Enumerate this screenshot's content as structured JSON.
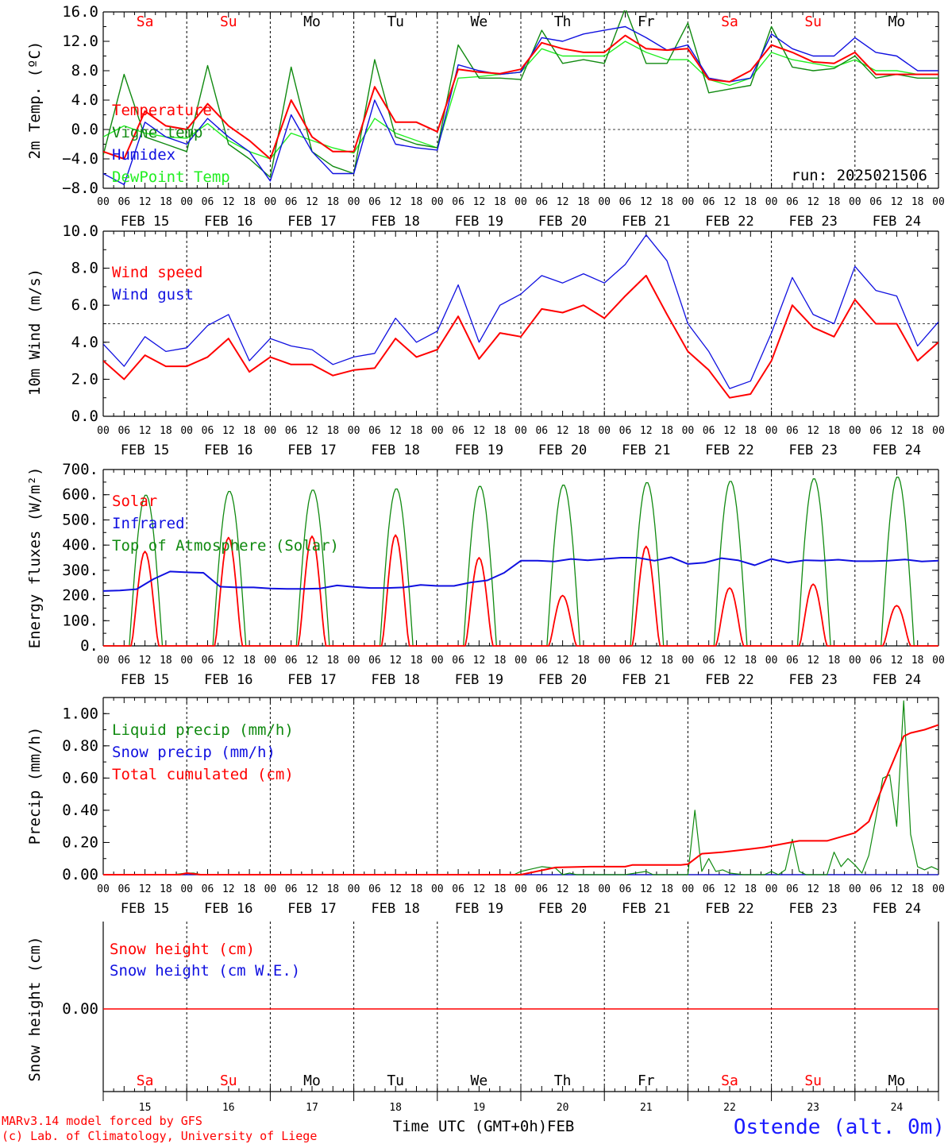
{
  "footer": {
    "credit_line1": "MARv3.14 model forced by GFS",
    "credit_line2": "(c) Lab. of Climatology, University of Liege",
    "xlabel": "Time UTC (GMT+0h)",
    "month_label": "FEB",
    "station": "Ostende (alt. 0m)"
  },
  "colors": {
    "red": "#ff0000",
    "blue": "#1010e0",
    "green": "#108a10",
    "lightgreen": "#22ee22",
    "axis": "#000000"
  },
  "chart_data": [
    {
      "type": "line",
      "ylabel": "2m Temp. (ºC)",
      "ylim": [
        -8,
        16
      ],
      "yticks": [
        "16.0",
        "12.0",
        "8.0",
        "4.0",
        "0.0",
        "−4.0",
        "−8.0"
      ],
      "run_label": "run: 2025021506",
      "day_labels": [
        {
          "label": "Sa",
          "color": "#ff0000"
        },
        {
          "label": "Su",
          "color": "#ff0000"
        },
        {
          "label": "Mo",
          "color": "#000000"
        },
        {
          "label": "Tu",
          "color": "#000000"
        },
        {
          "label": "We",
          "color": "#000000"
        },
        {
          "label": "Th",
          "color": "#000000"
        },
        {
          "label": "Fr",
          "color": "#000000"
        },
        {
          "label": "Sa",
          "color": "#ff0000"
        },
        {
          "label": "Su",
          "color": "#ff0000"
        },
        {
          "label": "Mo",
          "color": "#000000"
        }
      ],
      "x_hours": [
        0,
        6,
        12,
        18,
        24,
        30,
        36,
        42,
        48,
        54,
        60,
        66,
        72,
        78,
        84,
        90,
        96,
        102,
        108,
        114,
        120,
        126,
        132,
        138,
        144,
        150,
        156,
        162,
        168,
        174,
        180,
        186,
        192,
        198,
        204,
        210,
        216,
        222,
        228,
        234,
        240
      ],
      "series": [
        {
          "name": "Temperature",
          "color": "#ff0000",
          "values": [
            -3,
            -4,
            2.5,
            0.5,
            0,
            3.5,
            0.5,
            -1.5,
            -4,
            4,
            -1,
            -3,
            -3,
            5.8,
            1,
            1,
            -0.3,
            8.2,
            7.8,
            7.6,
            8.2,
            11.8,
            11,
            10.5,
            10.5,
            12.8,
            11,
            10.8,
            11,
            6.8,
            6.5,
            8,
            11.5,
            10.5,
            9.2,
            9,
            10.5,
            7.5,
            7.5,
            7.5,
            7.5
          ]
        },
        {
          "name": "Vigne temp",
          "color": "#108a10",
          "values": [
            -3.5,
            7.5,
            -1,
            -2,
            -3,
            8.7,
            -2,
            -4,
            -6.5,
            8.5,
            -3,
            -5,
            -6,
            9.5,
            -1,
            -2,
            -2.5,
            11.5,
            7,
            7,
            6.8,
            13.5,
            9,
            9.5,
            9,
            16.5,
            9,
            9,
            14.5,
            5,
            5.5,
            6,
            14,
            8.5,
            8,
            8.3,
            10,
            7,
            7.5,
            7,
            7
          ]
        },
        {
          "name": "Humidex",
          "color": "#1010e0",
          "values": [
            -6,
            -7.5,
            1,
            -1,
            -2,
            1.5,
            -1,
            -3,
            -7,
            2,
            -3,
            -6,
            -6,
            4,
            -2,
            -2.5,
            -2.8,
            8.8,
            8,
            7.5,
            7.8,
            12.5,
            12,
            13,
            13.5,
            14,
            12.5,
            10.8,
            11.5,
            7,
            6.5,
            7,
            13,
            11,
            10,
            10,
            12.5,
            10.5,
            10,
            8,
            8
          ]
        },
        {
          "name": "DewPoint Temp",
          "color": "#22ee22",
          "values": [
            -1,
            0.5,
            -0.5,
            -1,
            -1.2,
            0.8,
            -1.5,
            -3,
            -4,
            -0.5,
            -1.5,
            -2.5,
            -3.2,
            1.5,
            -0.5,
            -1.5,
            -2.5,
            7,
            7.2,
            7.5,
            7.8,
            11,
            10,
            10,
            10,
            12,
            10.5,
            9.5,
            9.5,
            6.8,
            6,
            7,
            10.5,
            9.5,
            9,
            8.5,
            9.5,
            8,
            8,
            7.5,
            7.5
          ]
        }
      ],
      "legend": [
        {
          "label": "Temperature",
          "color": "#ff0000"
        },
        {
          "label": "Vigne temp",
          "color": "#108a10"
        },
        {
          "label": "Humidex",
          "color": "#1010e0"
        },
        {
          "label": "DewPoint Temp",
          "color": "#22ee22"
        }
      ]
    },
    {
      "type": "line",
      "ylabel": "10m Wind (m/s)",
      "ylim": [
        0,
        10
      ],
      "yticks": [
        "10.0",
        "8.0",
        "6.0",
        "4.0",
        "2.0",
        "0.0"
      ],
      "x_hours": [
        0,
        6,
        12,
        18,
        24,
        30,
        36,
        42,
        48,
        54,
        60,
        66,
        72,
        78,
        84,
        90,
        96,
        102,
        108,
        114,
        120,
        126,
        132,
        138,
        144,
        150,
        156,
        162,
        168,
        174,
        180,
        186,
        192,
        198,
        204,
        210,
        216,
        222,
        228,
        234,
        240
      ],
      "series": [
        {
          "name": "Wind speed",
          "color": "#ff0000",
          "values": [
            3,
            2,
            3.3,
            2.7,
            2.7,
            3.2,
            4.2,
            2.4,
            3.2,
            2.8,
            2.8,
            2.2,
            2.5,
            2.6,
            4.2,
            3.2,
            3.6,
            5.4,
            3.1,
            4.5,
            4.3,
            5.8,
            5.6,
            6.0,
            5.3,
            6.5,
            7.6,
            5.5,
            3.5,
            2.5,
            1,
            1.2,
            3,
            6,
            4.8,
            4.3,
            6.3,
            5,
            5,
            3,
            4
          ]
        },
        {
          "name": "Wind gust",
          "color": "#1010e0",
          "values": [
            3.9,
            2.7,
            4.3,
            3.5,
            3.7,
            4.9,
            5.5,
            3,
            4.2,
            3.8,
            3.6,
            2.8,
            3.2,
            3.4,
            5.3,
            4.0,
            4.6,
            7.1,
            4.0,
            6.0,
            6.6,
            7.6,
            7.2,
            7.7,
            7.2,
            8.2,
            9.8,
            8.4,
            5.0,
            3.5,
            1.5,
            1.9,
            4.5,
            7.5,
            5.5,
            5.0,
            8.1,
            6.8,
            6.5,
            3.8,
            5.1
          ]
        }
      ],
      "legend": [
        {
          "label": "Wind speed",
          "color": "#ff0000"
        },
        {
          "label": "Wind gust",
          "color": "#1010e0"
        }
      ]
    },
    {
      "type": "line",
      "ylabel": "Energy fluxes (W/m²)",
      "ylim": [
        0,
        700
      ],
      "yticks": [
        "700.",
        "600.",
        "500.",
        "400.",
        "300.",
        "200.",
        "100.",
        "0."
      ],
      "solar_peaks": [
        375,
        430,
        435,
        440,
        350,
        200,
        395,
        230,
        245,
        160
      ],
      "toa_peaks": [
        600,
        615,
        620,
        625,
        635,
        640,
        650,
        655,
        665,
        672
      ],
      "infrared_values": [
        218,
        220,
        225,
        265,
        295,
        292,
        290,
        235,
        232,
        232,
        228,
        226,
        226,
        228,
        240,
        234,
        230,
        230,
        232,
        242,
        238,
        238,
        252,
        260,
        290,
        338,
        338,
        335,
        345,
        340,
        345,
        350,
        350,
        338,
        352,
        325,
        330,
        348,
        340,
        320,
        345,
        330,
        340,
        338,
        342,
        336,
        336,
        338,
        343,
        335,
        338
      ],
      "series": [
        {
          "name": "Solar",
          "color": "#ff0000"
        },
        {
          "name": "Infrared",
          "color": "#1010e0"
        },
        {
          "name": "Top of Atmosphere (Solar)",
          "color": "#108a10"
        }
      ],
      "legend": [
        {
          "label": "Solar",
          "color": "#ff0000"
        },
        {
          "label": "Infrared",
          "color": "#1010e0"
        },
        {
          "label": "Top of Atmosphere (Solar)",
          "color": "#108a10"
        }
      ]
    },
    {
      "type": "line",
      "ylabel": "Precip (mm/h)",
      "ylim": [
        0,
        1.1
      ],
      "yticks": [
        "1.00",
        "0.80",
        "0.60",
        "0.40",
        "0.20",
        "0.00"
      ],
      "series": [
        {
          "name": "Liquid precip (mm/h)",
          "color": "#108a10",
          "x_hours": [
            0,
            20,
            24,
            26,
            28,
            40,
            60,
            80,
            100,
            118,
            120,
            124,
            126,
            130,
            132,
            134,
            136,
            150,
            156,
            158,
            168,
            170,
            172,
            174,
            176,
            178,
            180,
            184,
            186,
            190,
            192,
            194,
            196,
            198,
            200,
            202,
            204,
            206,
            208,
            210,
            212,
            214,
            216,
            218,
            220,
            222,
            224,
            226,
            228,
            230,
            232,
            234,
            236,
            238,
            240
          ],
          "values": [
            0,
            0,
            0.01,
            0.01,
            0,
            0,
            0,
            0,
            0,
            0,
            0.02,
            0.04,
            0.05,
            0.04,
            0,
            0.01,
            0,
            0,
            0.02,
            0,
            0,
            0.4,
            0.02,
            0.1,
            0.02,
            0.03,
            0.01,
            0,
            0,
            0,
            0.02,
            0,
            0.03,
            0.22,
            0.02,
            0,
            0,
            0,
            0,
            0.14,
            0.05,
            0.1,
            0.06,
            0.01,
            0.12,
            0.35,
            0.6,
            0.62,
            0.3,
            1.08,
            0.25,
            0.05,
            0.03,
            0.05,
            0.03
          ]
        },
        {
          "name": "Snow precip (mm/h)",
          "color": "#1010e0",
          "x_hours": [
            0,
            240
          ],
          "values": [
            0,
            0
          ]
        },
        {
          "name": "Total cumulated (cm)",
          "color": "#ff0000",
          "x_hours": [
            0,
            22,
            24,
            28,
            40,
            60,
            80,
            100,
            120,
            130,
            140,
            150,
            152,
            156,
            160,
            166,
            168,
            172,
            178,
            186,
            190,
            200,
            204,
            208,
            216,
            220,
            224,
            230,
            232,
            236,
            240
          ],
          "values": [
            0,
            0,
            0.01,
            0,
            0,
            0,
            0,
            0,
            0,
            0.045,
            0.05,
            0.05,
            0.06,
            0.06,
            0.06,
            0.06,
            0.065,
            0.13,
            0.14,
            0.16,
            0.17,
            0.21,
            0.21,
            0.21,
            0.26,
            0.33,
            0.55,
            0.86,
            0.88,
            0.9,
            0.93
          ]
        }
      ],
      "legend": [
        {
          "label": "Liquid precip (mm/h)",
          "color": "#108a10"
        },
        {
          "label": "Snow precip (mm/h)",
          "color": "#1010e0"
        },
        {
          "label": "Total cumulated (cm)",
          "color": "#ff0000"
        }
      ]
    },
    {
      "type": "line",
      "ylabel": "Snow height (cm)",
      "yticks": [
        "0.00"
      ],
      "series": [
        {
          "name": "Snow height (cm)",
          "color": "#ff0000",
          "x_hours": [
            0,
            240
          ],
          "values": [
            0,
            0
          ]
        },
        {
          "name": "Snow height (cm W.E.)",
          "color": "#1010e0",
          "x_hours": [
            0,
            240
          ],
          "values": [
            0,
            0
          ]
        }
      ],
      "legend": [
        {
          "label": "Snow height (cm)",
          "color": "#ff0000"
        },
        {
          "label": "Snow height (cm W.E.)",
          "color": "#1010e0"
        }
      ],
      "day_labels": [
        {
          "label": "Sa",
          "color": "#ff0000"
        },
        {
          "label": "Su",
          "color": "#ff0000"
        },
        {
          "label": "Mo",
          "color": "#000000"
        },
        {
          "label": "Tu",
          "color": "#000000"
        },
        {
          "label": "We",
          "color": "#000000"
        },
        {
          "label": "Th",
          "color": "#000000"
        },
        {
          "label": "Fr",
          "color": "#000000"
        },
        {
          "label": "Sa",
          "color": "#ff0000"
        },
        {
          "label": "Su",
          "color": "#ff0000"
        },
        {
          "label": "Mo",
          "color": "#000000"
        }
      ],
      "day_numbers": [
        "15",
        "16",
        "17",
        "18",
        "19",
        "20",
        "21",
        "22",
        "23",
        "24"
      ]
    }
  ],
  "x_axis": {
    "hour_ticks": [
      "00",
      "06",
      "12",
      "18"
    ],
    "final_tick": "00",
    "dates": [
      "FEB 15",
      "FEB 16",
      "FEB 17",
      "FEB 18",
      "FEB 19",
      "FEB 20",
      "FEB 21",
      "FEB 22",
      "FEB 23",
      "FEB 24"
    ]
  }
}
